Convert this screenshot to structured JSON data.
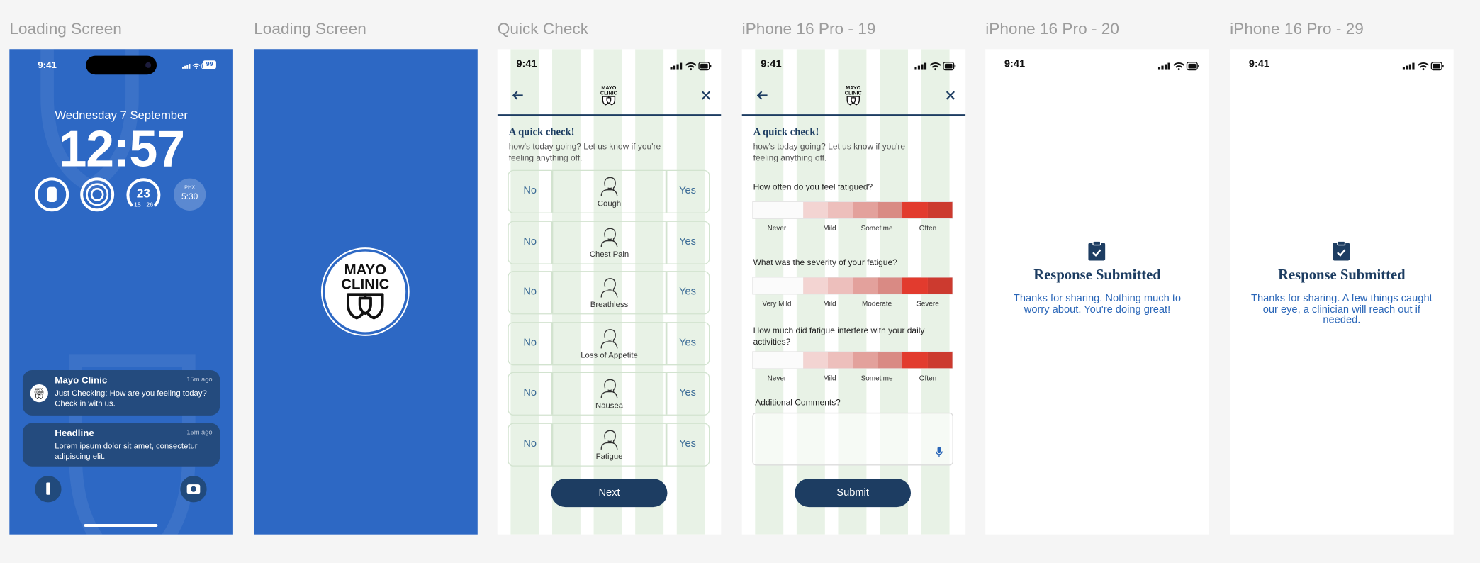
{
  "frames": [
    {
      "label": "Loading Screen",
      "status_time": "9:41",
      "battery": "99",
      "date": "Wednesday 7 September",
      "clock": "12:57",
      "widgets": {
        "temp": "23",
        "low": "15",
        "high": "26",
        "city": "PHX",
        "city_time": "5:30"
      },
      "notifications": [
        {
          "app": "Mayo Clinic",
          "time": "15m ago",
          "body": "Just Checking: How are you feeling today? Check in with us."
        },
        {
          "app": "Headline",
          "time": "15m ago",
          "body": "Lorem ipsum dolor sit amet, consectetur adipiscing elit."
        }
      ]
    },
    {
      "label": "Loading Screen"
    },
    {
      "label": "Quick Check",
      "status_time": "9:41",
      "title": "A quick check!",
      "intro": "how's today going? Let us know if you're feeling anything off.",
      "rows": [
        {
          "no": "No",
          "symptom": "Cough",
          "yes": "Yes"
        },
        {
          "no": "No",
          "symptom": "Chest Pain",
          "yes": "Yes"
        },
        {
          "no": "No",
          "symptom": "Breathless",
          "yes": "Yes"
        },
        {
          "no": "No",
          "symptom": "Loss of Appetite",
          "yes": "Yes"
        },
        {
          "no": "No",
          "symptom": "Nausea",
          "yes": "Yes"
        },
        {
          "no": "No",
          "symptom": "Fatigue",
          "yes": "Yes"
        }
      ],
      "button": "Next"
    },
    {
      "label": "iPhone 16 Pro - 19",
      "status_time": "9:41",
      "title": "A quick check!",
      "intro": "how's today going? Let us know if you're feeling anything off.",
      "questions": [
        {
          "text": "How often do you feel fatigued?",
          "scale": [
            "Never",
            "Mild",
            "Sometime",
            "Often"
          ]
        },
        {
          "text": "What was the severity of your fatigue?",
          "scale": [
            "Very Mild",
            "Mild",
            "Moderate",
            "Severe"
          ]
        },
        {
          "text": "How much did fatigue interfere with your daily activities?",
          "scale": [
            "Never",
            "Mild",
            "Sometime",
            "Often"
          ]
        }
      ],
      "comments_label": "Additional Comments?",
      "button": "Submit"
    },
    {
      "label": "iPhone 16 Pro - 20",
      "status_time": "9:41",
      "heading": "Response Submitted",
      "message": "Thanks for sharing. Nothing much to worry about. You're doing great!"
    },
    {
      "label": "iPhone 16 Pro - 29",
      "status_time": "9:41",
      "heading": "Response Submitted",
      "message": "Thanks for sharing. A few things caught our eye, a clinician will reach out if needed."
    }
  ],
  "logo": {
    "line1": "MAYO",
    "line2": "CLINIC"
  }
}
